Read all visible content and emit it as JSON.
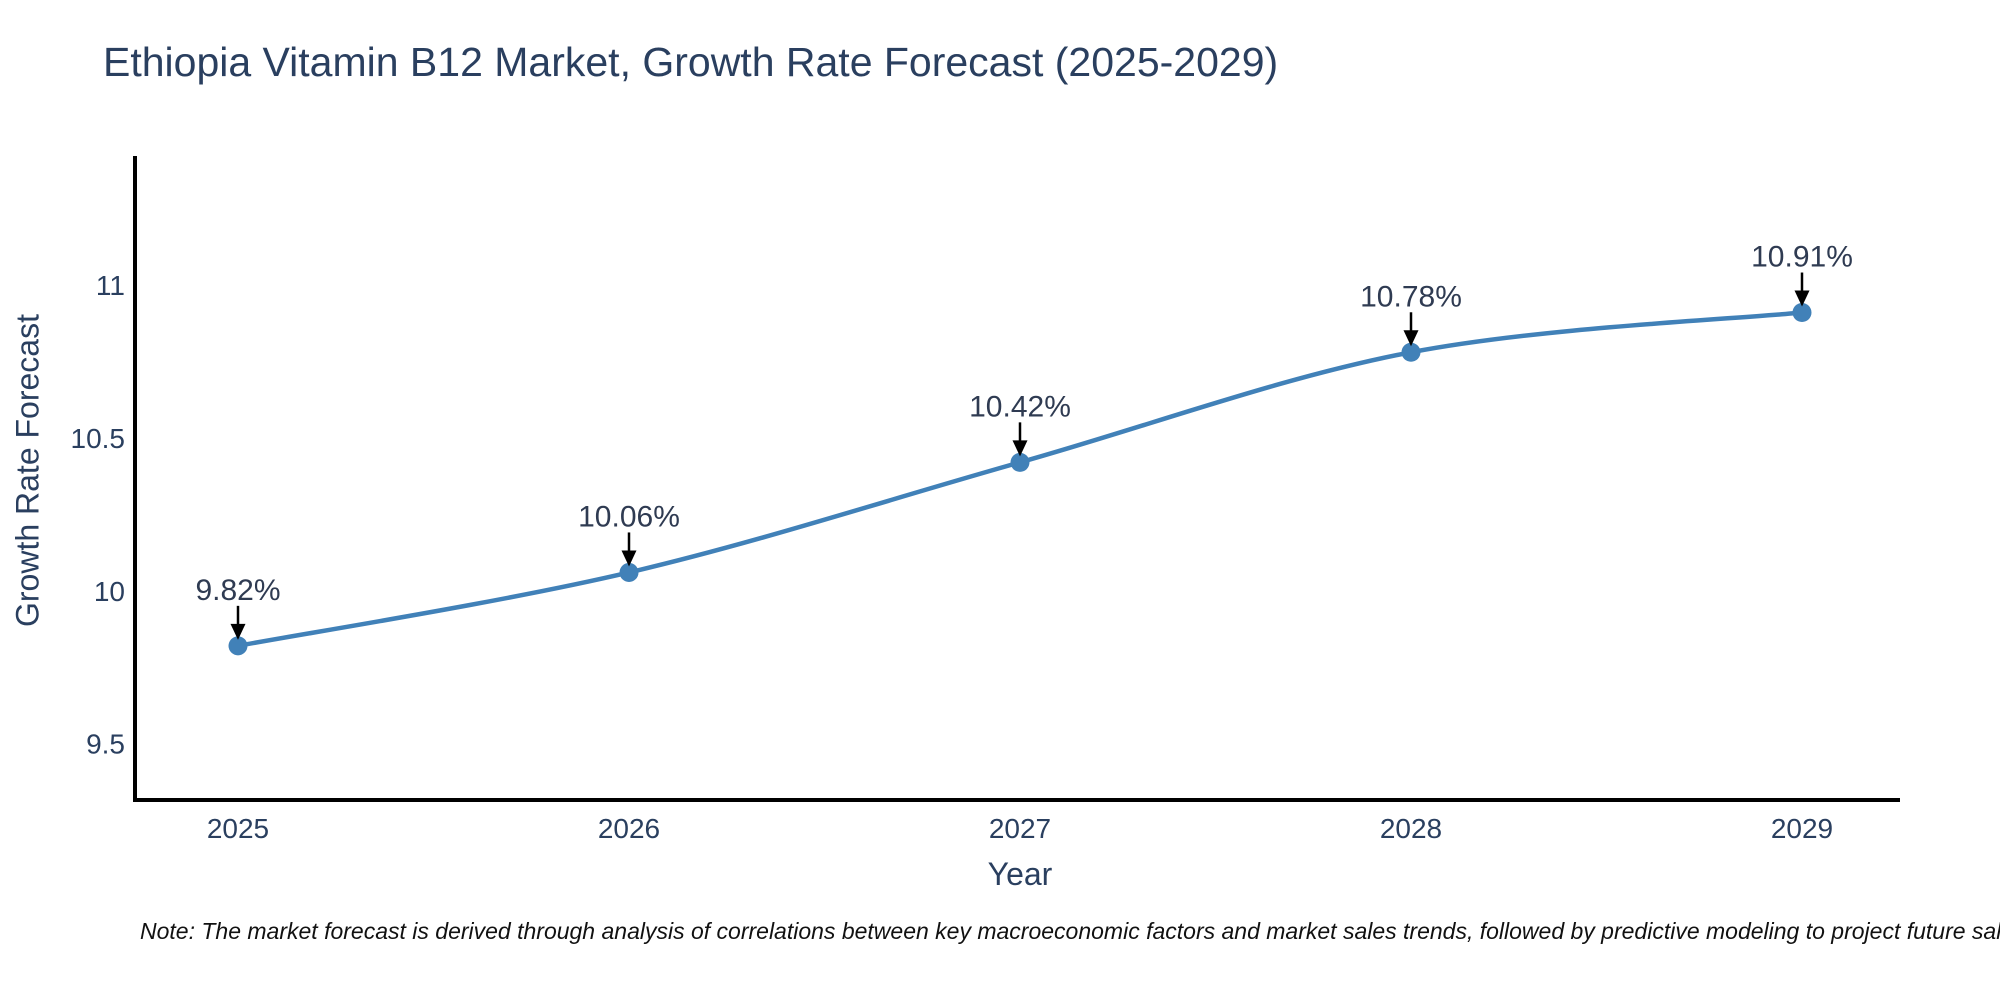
{
  "page": {
    "note": "Note: The market forecast is derived through analysis of correlations between key macroeconomic factors and market sales trends, followed by predictive modeling to project future sales."
  },
  "chart_data": {
    "type": "line",
    "title": "Ethiopia Vitamin B12 Market, Growth Rate Forecast (2025-2029)",
    "xlabel": "Year",
    "ylabel": "Growth Rate Forecast",
    "x": [
      2025,
      2026,
      2027,
      2028,
      2029
    ],
    "series": [
      {
        "name": "Growth Rate Forecast",
        "values": [
          9.82,
          10.06,
          10.42,
          10.78,
          10.91
        ]
      }
    ],
    "point_labels": [
      "9.82%",
      "10.06%",
      "10.42%",
      "10.78%",
      "10.91%"
    ],
    "ytick_labels": [
      "9.5",
      "10",
      "10.5",
      "11"
    ],
    "ytick_values": [
      9.5,
      10,
      10.5,
      11
    ],
    "ylim": [
      9.3,
      11.42
    ],
    "xlim": [
      2024.73,
      2029.25
    ],
    "grid": false,
    "legend": "none",
    "line_shape": "spline",
    "line_color": "#4181b8",
    "marker_color": "#4181b8",
    "arrow_color": "#000000",
    "annotation_text_color": "#2f3b52",
    "tick_text_color": "#2a3f5f",
    "axis_color": "#000000"
  }
}
